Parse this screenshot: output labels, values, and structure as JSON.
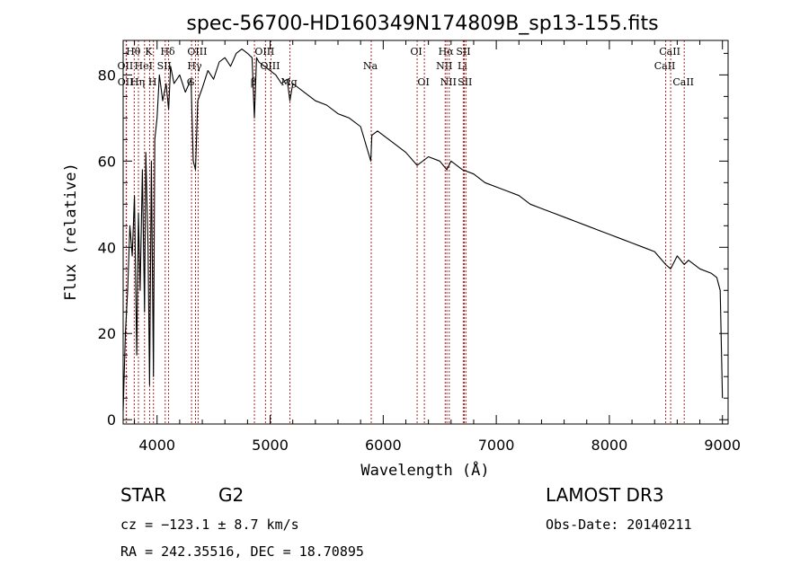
{
  "chart_data": {
    "type": "line",
    "title": "spec-56700-HD160349N174809B_sp13-155.fits",
    "xlabel": "Wavelength (Å)",
    "ylabel": "Flux (relative)",
    "xlim": [
      3700,
      9050
    ],
    "ylim": [
      -1,
      88
    ],
    "xticks": [
      4000,
      5000,
      6000,
      7000,
      8000,
      9000
    ],
    "yticks": [
      0,
      20,
      40,
      60,
      80
    ],
    "series": [
      {
        "name": "spectrum",
        "x": [
          3700,
          3720,
          3740,
          3760,
          3780,
          3800,
          3820,
          3835,
          3850,
          3870,
          3889,
          3900,
          3920,
          3934,
          3950,
          3968,
          3980,
          4000,
          4020,
          4050,
          4080,
          4102,
          4120,
          4150,
          4200,
          4250,
          4300,
          4320,
          4340,
          4360,
          4400,
          4450,
          4500,
          4550,
          4600,
          4650,
          4700,
          4750,
          4800,
          4840,
          4861,
          4880,
          4900,
          4950,
          5000,
          5050,
          5100,
          5150,
          5175,
          5200,
          5300,
          5400,
          5500,
          5600,
          5700,
          5800,
          5890,
          5900,
          5950,
          6000,
          6100,
          6200,
          6300,
          6400,
          6500,
          6563,
          6600,
          6700,
          6800,
          6900,
          7000,
          7100,
          7200,
          7300,
          7400,
          7500,
          7600,
          7700,
          7800,
          7900,
          8000,
          8100,
          8200,
          8300,
          8400,
          8498,
          8542,
          8600,
          8662,
          8700,
          8800,
          8900,
          8950,
          8980,
          9000
        ],
        "y": [
          2,
          20,
          30,
          45,
          38,
          52,
          15,
          48,
          30,
          58,
          25,
          62,
          40,
          8,
          60,
          10,
          65,
          70,
          80,
          74,
          78,
          72,
          82,
          78,
          80,
          76,
          79,
          60,
          58,
          74,
          77,
          81,
          79,
          83,
          84,
          82,
          85,
          86,
          85,
          84,
          70,
          84,
          83,
          82,
          81,
          80,
          78,
          79,
          74,
          78,
          76,
          74,
          73,
          71,
          70,
          68,
          60,
          66,
          67,
          66,
          64,
          62,
          59,
          61,
          60,
          58,
          60,
          58,
          57,
          55,
          54,
          53,
          52,
          50,
          49,
          48,
          47,
          46,
          45,
          44,
          43,
          42,
          41,
          40,
          39,
          36,
          35,
          38,
          36,
          37,
          35,
          34,
          33,
          30,
          5
        ]
      }
    ],
    "lines": [
      {
        "label": "Hθ",
        "wave": 3798,
        "row": 1
      },
      {
        "label": "OII",
        "wave": 3727,
        "row": 2
      },
      {
        "label": "OII",
        "wave": 3729,
        "row": 3
      },
      {
        "label": "HeI",
        "wave": 3889,
        "row": 2
      },
      {
        "label": "Hη",
        "wave": 3835,
        "row": 3
      },
      {
        "label": "K",
        "wave": 3934,
        "row": 1
      },
      {
        "label": "H",
        "wave": 3968,
        "row": 3
      },
      {
        "label": "SII",
        "wave": 4072,
        "row": 2
      },
      {
        "label": "Hδ",
        "wave": 4102,
        "row": 1
      },
      {
        "label": "OIII",
        "wave": 4363,
        "row": 1
      },
      {
        "label": "Hγ",
        "wave": 4340,
        "row": 2
      },
      {
        "label": "G",
        "wave": 4305,
        "row": 3
      },
      {
        "label": "OIII",
        "wave": 4959,
        "row": 1
      },
      {
        "label": "OIII",
        "wave": 5007,
        "row": 2
      },
      {
        "label": "β",
        "wave": 4861,
        "row": 3
      },
      {
        "label": "Mg",
        "wave": 5175,
        "row": 3
      },
      {
        "label": "Na",
        "wave": 5894,
        "row": 2
      },
      {
        "label": "OI",
        "wave": 6300,
        "row": 1
      },
      {
        "label": "OI",
        "wave": 6364,
        "row": 3
      },
      {
        "label": "Hα",
        "wave": 6563,
        "row": 1
      },
      {
        "label": "NII",
        "wave": 6548,
        "row": 2
      },
      {
        "label": "NII",
        "wave": 6584,
        "row": 3
      },
      {
        "label": "SII",
        "wave": 6717,
        "row": 1
      },
      {
        "label": "Li",
        "wave": 6708,
        "row": 2
      },
      {
        "label": "SII",
        "wave": 6731,
        "row": 3
      },
      {
        "label": "CaII",
        "wave": 8542,
        "row": 1
      },
      {
        "label": "CaII",
        "wave": 8498,
        "row": 2
      },
      {
        "label": "CaII",
        "wave": 8662,
        "row": 3
      }
    ]
  },
  "info": {
    "object_class": "STAR",
    "subclass": "G2",
    "survey": "LAMOST DR3",
    "cz": "cz = −123.1 ± 8.7 km/s",
    "obs_date": "Obs-Date: 20140211",
    "coords": "RA = 242.35516, DEC =  18.70895"
  },
  "colors": {
    "axis": "#000000",
    "spectrum": "#000000",
    "line_marker": "#b22222"
  }
}
